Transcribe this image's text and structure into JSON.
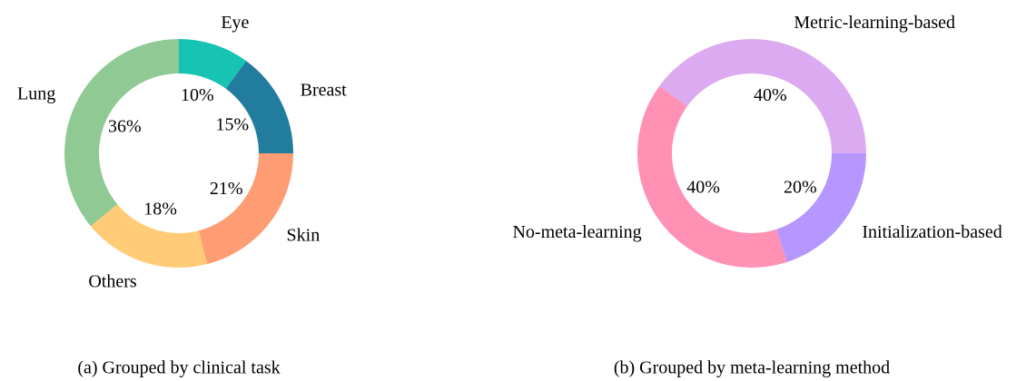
{
  "chart_data": [
    {
      "type": "pie",
      "donut": true,
      "caption": "(a) Grouped by clinical task",
      "categories": [
        "Breast",
        "Eye",
        "Lung",
        "Others",
        "Skin"
      ],
      "values": [
        15,
        10,
        36,
        18,
        21
      ],
      "value_labels": [
        "15%",
        "10%",
        "36%",
        "18%",
        "21%"
      ],
      "colors": [
        "#227c9d",
        "#17c3b2",
        "#8fc993",
        "#ffcb77",
        "#fe9c73"
      ]
    },
    {
      "type": "pie",
      "donut": true,
      "caption": "(b) Grouped by meta-learning method",
      "categories": [
        "Metric-learning-based",
        "No-meta-learning",
        "Initialization-based"
      ],
      "values": [
        40,
        40,
        20
      ],
      "value_labels": [
        "40%",
        "40%",
        "20%"
      ],
      "colors": [
        "#dcaaf0",
        "#ff91b4",
        "#b696ff"
      ]
    }
  ]
}
